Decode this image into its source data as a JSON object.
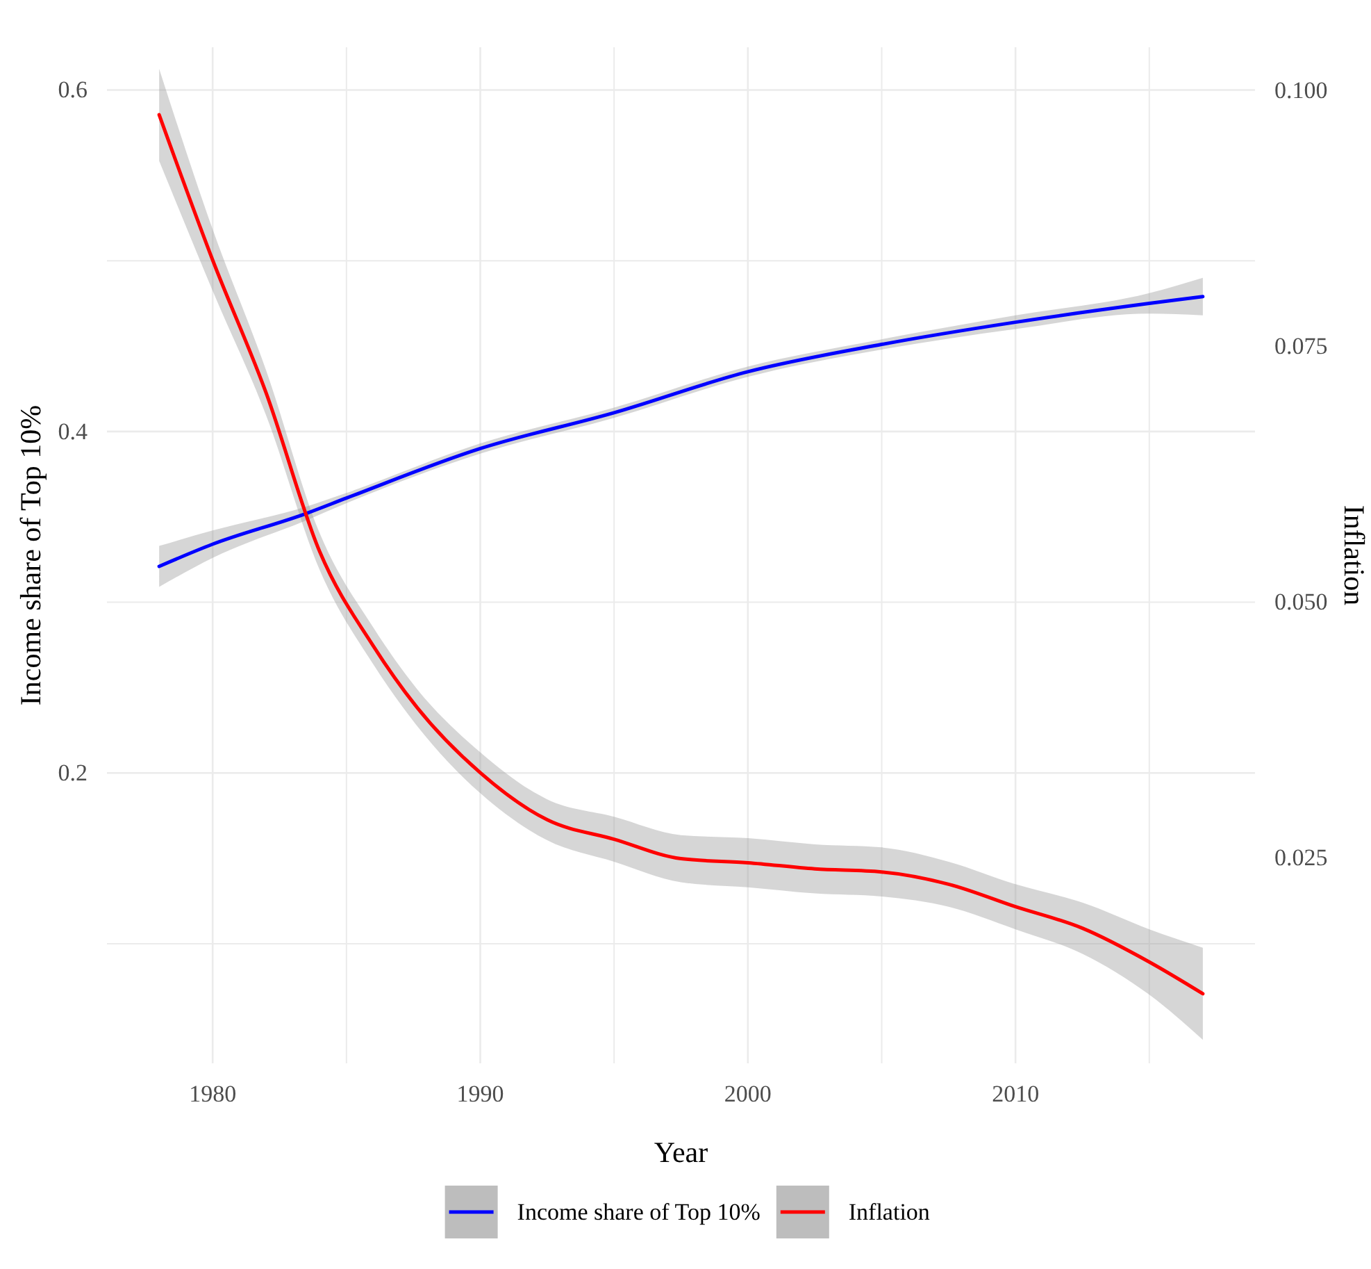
{
  "chart_data": {
    "type": "line",
    "xlabel": "Year",
    "ylabel": "Income share of Top 10%",
    "y2label": "Inflation",
    "xlim": [
      1976.05,
      2018.95
    ],
    "xticks": [
      1980,
      {
        "value": 1985,
        "label": null
      },
      1990,
      {
        "value": 1995,
        "label": null
      },
      2000,
      {
        "value": 2005,
        "label": null
      },
      2010,
      {
        "value": 2015,
        "label": null
      }
    ],
    "ylim": [
      0.03,
      0.625
    ],
    "yticks": [
      {
        "value": 0.1,
        "label": null
      },
      0.2,
      {
        "value": 0.3,
        "label": null
      },
      0.4,
      {
        "value": 0.5,
        "label": null
      },
      0.6
    ],
    "y2lim": [
      0.0049,
      0.1042
    ],
    "y2ticks": [
      0.025,
      {
        "value": 0.05,
        "label": "0.050"
      },
      0.075,
      {
        "value": 0.1,
        "label": "0.100"
      }
    ],
    "grid": true,
    "legend": "bottom",
    "series": [
      {
        "name": "Income share of Top 10%",
        "color": "#0000ff",
        "x": [
          1978,
          1980,
          1983.5,
          1985,
          1990,
          1995,
          2000,
          2005,
          2010,
          2015,
          2017
        ],
        "values": [
          0.321,
          0.334,
          0.352,
          0.361,
          0.39,
          0.411,
          0.435,
          0.451,
          0.464,
          0.475,
          0.479
        ],
        "lower": [
          0.309,
          0.326,
          0.348,
          0.358,
          0.387,
          0.408,
          0.432,
          0.448,
          0.46,
          0.469,
          0.468
        ],
        "upper": [
          0.333,
          0.342,
          0.356,
          0.364,
          0.393,
          0.414,
          0.438,
          0.454,
          0.468,
          0.481,
          0.49
        ]
      },
      {
        "name": "Inflation",
        "color": "#ff0000",
        "axis": "y2",
        "x": [
          1978,
          1980,
          1982,
          1984,
          1986,
          1987.6,
          1990,
          1992.5,
          1995,
          1997.5,
          2000,
          2002.5,
          2005,
          2007.5,
          2010,
          2012.5,
          2015,
          2017
        ],
        "values": [
          0.0976,
          0.0834,
          0.0704,
          0.0549,
          0.0457,
          0.0398,
          0.0333,
          0.0287,
          0.0268,
          0.0249,
          0.0245,
          0.0239,
          0.0236,
          0.0224,
          0.0202,
          0.0181,
          0.0148,
          0.0117
        ],
        "lower": [
          0.0931,
          0.0804,
          0.0682,
          0.0531,
          0.0439,
          0.038,
          0.0313,
          0.0267,
          0.0246,
          0.0226,
          0.0221,
          0.0215,
          0.0212,
          0.0202,
          0.018,
          0.0156,
          0.0116,
          0.0072
        ],
        "upper": [
          0.1021,
          0.0864,
          0.0726,
          0.0567,
          0.0475,
          0.0416,
          0.0353,
          0.0307,
          0.029,
          0.0272,
          0.0269,
          0.0263,
          0.026,
          0.0246,
          0.0224,
          0.0206,
          0.018,
          0.0162
        ]
      }
    ]
  }
}
